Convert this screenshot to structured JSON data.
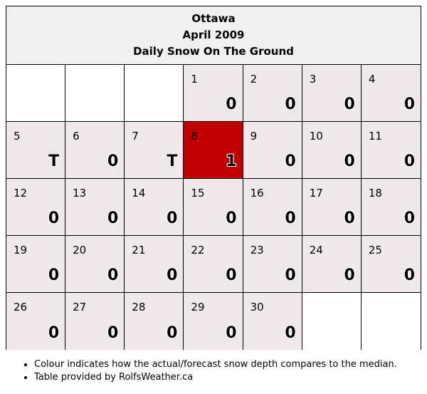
{
  "header": {
    "city": "Ottawa",
    "month": "April 2009",
    "subtitle": "Daily Snow On The Ground"
  },
  "colors": {
    "default_cell": "#eee8ea",
    "highlight_cell": "#c00000",
    "header_bg": "#f0f0f0"
  },
  "weeks": [
    [
      {
        "day": "",
        "value": ""
      },
      {
        "day": "",
        "value": ""
      },
      {
        "day": "",
        "value": ""
      },
      {
        "day": "1",
        "value": "0"
      },
      {
        "day": "2",
        "value": "0"
      },
      {
        "day": "3",
        "value": "0"
      },
      {
        "day": "4",
        "value": "0"
      }
    ],
    [
      {
        "day": "5",
        "value": "T"
      },
      {
        "day": "6",
        "value": "0"
      },
      {
        "day": "7",
        "value": "T"
      },
      {
        "day": "8",
        "value": "1",
        "highlight": true
      },
      {
        "day": "9",
        "value": "0"
      },
      {
        "day": "10",
        "value": "0"
      },
      {
        "day": "11",
        "value": "0"
      }
    ],
    [
      {
        "day": "12",
        "value": "0"
      },
      {
        "day": "13",
        "value": "0"
      },
      {
        "day": "14",
        "value": "0"
      },
      {
        "day": "15",
        "value": "0"
      },
      {
        "day": "16",
        "value": "0"
      },
      {
        "day": "17",
        "value": "0"
      },
      {
        "day": "18",
        "value": "0"
      }
    ],
    [
      {
        "day": "19",
        "value": "0"
      },
      {
        "day": "20",
        "value": "0"
      },
      {
        "day": "21",
        "value": "0"
      },
      {
        "day": "22",
        "value": "0"
      },
      {
        "day": "23",
        "value": "0"
      },
      {
        "day": "24",
        "value": "0"
      },
      {
        "day": "25",
        "value": "0"
      }
    ],
    [
      {
        "day": "26",
        "value": "0"
      },
      {
        "day": "27",
        "value": "0"
      },
      {
        "day": "28",
        "value": "0"
      },
      {
        "day": "29",
        "value": "0"
      },
      {
        "day": "30",
        "value": "0"
      },
      {
        "day": "",
        "value": ""
      },
      {
        "day": "",
        "value": ""
      }
    ]
  ],
  "notes": [
    "Colour indicates how the actual/forecast snow depth compares to the median.",
    "Table provided by RolfsWeather.ca"
  ]
}
